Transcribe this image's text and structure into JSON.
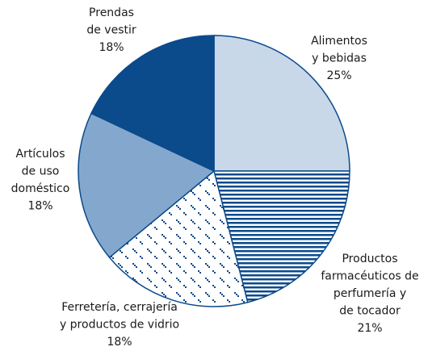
{
  "chart_data": {
    "type": "pie",
    "categories": [
      "Alimentos\ny bebidas",
      "Productos\nfarmacéuticos de\nperfumería y\nde tocador",
      "Ferretería, cerrajería\ny productos de vidrio",
      "Artículos\nde uso\ndoméstico",
      "Prendas\nde vestir"
    ],
    "values": [
      25,
      21,
      18,
      18,
      18
    ],
    "value_labels": [
      "25%",
      "21%",
      "18%",
      "18%",
      "18%"
    ],
    "colors": [
      "#c8d8e9",
      "#0b4a8b",
      "#0b4a8b",
      "#84a8cd",
      "#0b4a8b"
    ],
    "patterns": [
      null,
      "horizontal-lines",
      "dots",
      null,
      null
    ]
  }
}
